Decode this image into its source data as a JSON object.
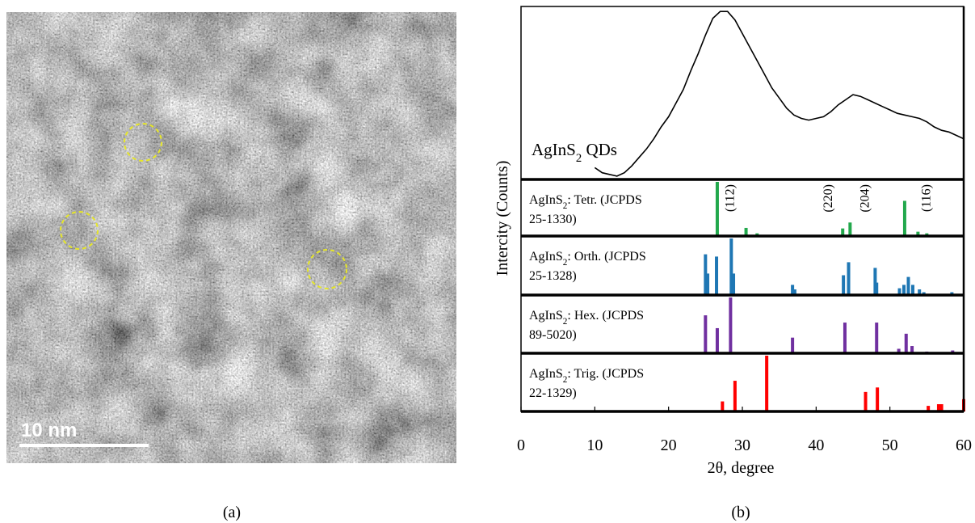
{
  "captions": [
    "(a)",
    "(b)"
  ],
  "tem_image": {
    "scale_bar_label": "10 nm"
  },
  "chart_data": {
    "type": "xrd",
    "x_label": "2θ, degree",
    "y_label": "Intercity (Counts)",
    "xlim": [
      0,
      60
    ],
    "xticks": [
      0,
      10,
      20,
      30,
      40,
      50,
      60
    ],
    "ylim": [
      0,
      100
    ],
    "sample": {
      "label": [
        "AgInS",
        "2",
        " QDs"
      ],
      "color": "#000000",
      "x": [
        10,
        11,
        12,
        13,
        14,
        15,
        16,
        17,
        18,
        19,
        20,
        21,
        22,
        23,
        24,
        25,
        26,
        27,
        28,
        29,
        30,
        31,
        32,
        33,
        34,
        35,
        36,
        37,
        38,
        39,
        40,
        41,
        42,
        43,
        44,
        45,
        46,
        47,
        48,
        49,
        50,
        51,
        52,
        53,
        54,
        55,
        56,
        57,
        58,
        59,
        60
      ],
      "values": [
        6,
        3,
        2,
        1,
        3,
        7,
        12,
        17,
        23,
        30,
        36,
        44,
        52,
        63,
        73,
        84,
        94,
        98,
        98,
        93,
        85,
        77,
        69,
        61,
        53,
        47,
        41,
        37,
        35,
        34,
        35,
        36,
        39,
        43,
        46,
        49,
        48,
        46,
        44,
        42,
        40,
        38,
        37,
        36,
        35,
        33,
        30,
        28,
        27,
        25,
        23
      ]
    },
    "references": [
      {
        "label": [
          [
            "AgInS",
            "2",
            ": Tetr. (JCPDS"
          ],
          [
            "25-1330)"
          ]
        ],
        "color": "#22a84c",
        "x": [
          26.6,
          30.5,
          32.0,
          43.6,
          44.6,
          52.0,
          53.8,
          55.0
        ],
        "values": [
          100,
          15,
          5,
          14,
          25,
          65,
          8,
          5
        ],
        "annotations": [
          {
            "text": "(112)",
            "x": 28.2
          },
          {
            "text": "(220)",
            "x": 41.5
          },
          {
            "text": "(204)",
            "x": 46.5
          },
          {
            "text": "(116)",
            "x": 54.8
          }
        ]
      },
      {
        "label": [
          [
            "AgInS",
            "2",
            ": Orth. (JCPDS"
          ],
          [
            "25-1328)"
          ]
        ],
        "color": "#1f77b4",
        "x": [
          25.0,
          25.3,
          26.5,
          28.5,
          28.8,
          36.8,
          37.1,
          43.7,
          44.4,
          48.0,
          48.2,
          51.3,
          51.9,
          52.5,
          53.1,
          54.0,
          54.6,
          58.4
        ],
        "values": [
          72,
          38,
          68,
          100,
          38,
          18,
          10,
          35,
          58,
          48,
          22,
          12,
          18,
          32,
          18,
          10,
          5,
          5
        ]
      },
      {
        "label": [
          [
            "AgInS",
            "2",
            ": Hex. (JCPDS"
          ],
          [
            "89-5020)"
          ]
        ],
        "color": "#7030a0",
        "x": [
          25.0,
          26.6,
          28.4,
          36.8,
          43.9,
          48.2,
          51.2,
          52.2,
          53.0,
          55.0,
          58.5
        ],
        "values": [
          68,
          45,
          100,
          28,
          55,
          55,
          8,
          35,
          13,
          3,
          5
        ]
      },
      {
        "label": [
          [
            "AgInS",
            "2",
            ": Trig. (JCPDS"
          ],
          [
            "22-1329)"
          ]
        ],
        "color": "#ff0000",
        "x": [
          27.3,
          29.0,
          33.3,
          46.7,
          48.3,
          55.2,
          56.6,
          57.0,
          60.0
        ],
        "values": [
          18,
          55,
          100,
          35,
          43,
          10,
          13,
          13,
          22
        ]
      }
    ]
  }
}
